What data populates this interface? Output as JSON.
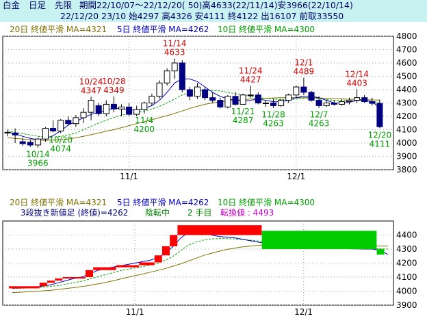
{
  "header": {
    "line1": {
      "name": "白金",
      "period_type": "日足",
      "contract": "先限",
      "range": "期間22/10/07～22/12/20( 50)高4633(22/11/14)安3966(22/10/14)"
    },
    "line2": "22/12/20 23/10 始4297 高4326 安4111 終4122 出16107 前取33550"
  },
  "colors": {
    "ma20": "#807000",
    "ma5": "#0000c0",
    "ma10": "#00a000",
    "high_label": "#d00000",
    "low_label": "#00a000",
    "pf_up": "#ff0000",
    "pf_down": "#00cc00",
    "reversal": "#cc00cc",
    "grid": "#a0a0a0"
  },
  "chart_data": [
    {
      "type": "candlestick",
      "legend": {
        "ma20": "20日 終値平滑 MA=4321",
        "ma5": "5日 終値平滑 MA=4262",
        "ma10": "10日 終値平滑 MA=4300"
      },
      "ylim": [
        3800,
        4800
      ],
      "yticks": [
        3800,
        3900,
        4000,
        4100,
        4200,
        4300,
        4400,
        4500,
        4600,
        4700,
        4800
      ],
      "xticks": [
        {
          "label": "11/1",
          "index": 16
        },
        {
          "label": "12/1",
          "index": 38
        }
      ],
      "candles": [
        {
          "o": 4080,
          "h": 4100,
          "l": 4050,
          "c": 4080
        },
        {
          "o": 4075,
          "h": 4110,
          "l": 4000,
          "c": 4060
        },
        {
          "o": 4010,
          "h": 4040,
          "l": 3980,
          "c": 3995
        },
        {
          "o": 4005,
          "h": 4025,
          "l": 3970,
          "c": 3985
        },
        {
          "o": 3985,
          "h": 4040,
          "l": 3966,
          "c": 4030
        },
        {
          "o": 4030,
          "h": 4120,
          "l": 4010,
          "c": 4110
        },
        {
          "o": 4110,
          "h": 4170,
          "l": 4080,
          "c": 4090
        },
        {
          "o": 4090,
          "h": 4180,
          "l": 4074,
          "c": 4170
        },
        {
          "o": 4170,
          "h": 4200,
          "l": 4130,
          "c": 4145
        },
        {
          "o": 4145,
          "h": 4210,
          "l": 4120,
          "c": 4190
        },
        {
          "o": 4190,
          "h": 4260,
          "l": 4150,
          "c": 4230
        },
        {
          "o": 4230,
          "h": 4347,
          "l": 4170,
          "c": 4320
        },
        {
          "o": 4280,
          "h": 4300,
          "l": 4200,
          "c": 4220
        },
        {
          "o": 4220,
          "h": 4320,
          "l": 4200,
          "c": 4290
        },
        {
          "o": 4290,
          "h": 4349,
          "l": 4230,
          "c": 4255
        },
        {
          "o": 4255,
          "h": 4290,
          "l": 4200,
          "c": 4270
        },
        {
          "o": 4270,
          "h": 4300,
          "l": 4200,
          "c": 4215
        },
        {
          "o": 4215,
          "h": 4280,
          "l": 4200,
          "c": 4250
        },
        {
          "o": 4250,
          "h": 4310,
          "l": 4220,
          "c": 4300
        },
        {
          "o": 4300,
          "h": 4370,
          "l": 4280,
          "c": 4350
        },
        {
          "o": 4350,
          "h": 4470,
          "l": 4330,
          "c": 4450
        },
        {
          "o": 4450,
          "h": 4560,
          "l": 4430,
          "c": 4540
        },
        {
          "o": 4540,
          "h": 4633,
          "l": 4480,
          "c": 4600
        },
        {
          "o": 4600,
          "h": 4620,
          "l": 4380,
          "c": 4400
        },
        {
          "o": 4400,
          "h": 4420,
          "l": 4320,
          "c": 4350
        },
        {
          "o": 4350,
          "h": 4450,
          "l": 4330,
          "c": 4420
        },
        {
          "o": 4400,
          "h": 4420,
          "l": 4320,
          "c": 4340
        },
        {
          "o": 4340,
          "h": 4380,
          "l": 4300,
          "c": 4320
        },
        {
          "o": 4320,
          "h": 4340,
          "l": 4260,
          "c": 4270
        },
        {
          "o": 4270,
          "h": 4360,
          "l": 4260,
          "c": 4350
        },
        {
          "o": 4350,
          "h": 4380,
          "l": 4280,
          "c": 4290
        },
        {
          "o": 4290,
          "h": 4370,
          "l": 4287,
          "c": 4360
        },
        {
          "o": 4360,
          "h": 4427,
          "l": 4340,
          "c": 4360
        },
        {
          "o": 4360,
          "h": 4380,
          "l": 4290,
          "c": 4300
        },
        {
          "o": 4300,
          "h": 4320,
          "l": 4270,
          "c": 4300
        },
        {
          "o": 4300,
          "h": 4330,
          "l": 4263,
          "c": 4280
        },
        {
          "o": 4280,
          "h": 4330,
          "l": 4270,
          "c": 4320
        },
        {
          "o": 4320,
          "h": 4370,
          "l": 4300,
          "c": 4360
        },
        {
          "o": 4360,
          "h": 4430,
          "l": 4340,
          "c": 4420
        },
        {
          "o": 4420,
          "h": 4489,
          "l": 4360,
          "c": 4380
        },
        {
          "o": 4380,
          "h": 4390,
          "l": 4310,
          "c": 4320
        },
        {
          "o": 4320,
          "h": 4350,
          "l": 4263,
          "c": 4280
        },
        {
          "o": 4280,
          "h": 4320,
          "l": 4270,
          "c": 4300
        },
        {
          "o": 4300,
          "h": 4320,
          "l": 4280,
          "c": 4290
        },
        {
          "o": 4290,
          "h": 4330,
          "l": 4280,
          "c": 4310
        },
        {
          "o": 4310,
          "h": 4340,
          "l": 4290,
          "c": 4320
        },
        {
          "o": 4320,
          "h": 4403,
          "l": 4300,
          "c": 4340
        },
        {
          "o": 4340,
          "h": 4360,
          "l": 4300,
          "c": 4310
        },
        {
          "o": 4310,
          "h": 4340,
          "l": 4280,
          "c": 4297
        },
        {
          "o": 4297,
          "h": 4326,
          "l": 4111,
          "c": 4122
        }
      ],
      "ma5": [
        4080,
        4070,
        4050,
        4035,
        4025,
        4035,
        4055,
        4090,
        4135,
        4160,
        4190,
        4215,
        4230,
        4245,
        4262,
        4255,
        4250,
        4245,
        4260,
        4280,
        4320,
        4380,
        4450,
        4480,
        4480,
        4460,
        4420,
        4380,
        4350,
        4330,
        4320,
        4315,
        4320,
        4330,
        4320,
        4310,
        4310,
        4320,
        4340,
        4350,
        4350,
        4340,
        4320,
        4300,
        4300,
        4305,
        4320,
        4320,
        4310,
        4262
      ],
      "ma10": [
        4090,
        4080,
        4070,
        4060,
        4050,
        4045,
        4045,
        4050,
        4060,
        4075,
        4100,
        4125,
        4150,
        4170,
        4190,
        4210,
        4220,
        4230,
        4240,
        4255,
        4275,
        4300,
        4330,
        4360,
        4380,
        4390,
        4395,
        4395,
        4390,
        4380,
        4370,
        4360,
        4350,
        4340,
        4335,
        4330,
        4325,
        4325,
        4330,
        4335,
        4335,
        4330,
        4325,
        4320,
        4320,
        4318,
        4318,
        4316,
        4312,
        4300
      ],
      "ma20": [
        4040,
        4035,
        4030,
        4025,
        4020,
        4020,
        4022,
        4025,
        4030,
        4040,
        4050,
        4062,
        4075,
        4088,
        4100,
        4115,
        4130,
        4145,
        4160,
        4175,
        4190,
        4205,
        4222,
        4240,
        4260,
        4275,
        4290,
        4300,
        4308,
        4315,
        4320,
        4325,
        4330,
        4333,
        4335,
        4338,
        4340,
        4340,
        4340,
        4340,
        4340,
        4338,
        4335,
        4332,
        4330,
        4328,
        4326,
        4325,
        4323,
        4321
      ],
      "annotations": [
        {
          "date": "10/14",
          "value": "3966",
          "type": "low",
          "index": 4
        },
        {
          "date": "10/20",
          "value": "4074",
          "type": "low",
          "index": 7
        },
        {
          "date": "10/24",
          "value": "4347",
          "type": "high",
          "index": 11
        },
        {
          "date": "10/28",
          "value": "4349",
          "type": "high",
          "index": 14
        },
        {
          "date": "11/4",
          "value": "4200",
          "type": "low",
          "index": 18
        },
        {
          "date": "11/14",
          "value": "4633",
          "type": "high",
          "index": 22
        },
        {
          "date": "11/21",
          "value": "4287",
          "type": "low",
          "index": 31
        },
        {
          "date": "11/24",
          "value": "4427",
          "type": "high",
          "index": 32
        },
        {
          "date": "11/28",
          "value": "4263",
          "type": "low",
          "index": 35
        },
        {
          "date": "12/1",
          "value": "4489",
          "type": "high",
          "index": 39
        },
        {
          "date": "12/7",
          "value": "4263",
          "type": "low",
          "index": 41
        },
        {
          "date": "12/14",
          "value": "4403",
          "type": "high",
          "index": 46
        },
        {
          "date": "12/20",
          "value": "4111",
          "type": "low",
          "index": 49
        }
      ]
    },
    {
      "type": "three-line-break",
      "legend": {
        "ma20": "20日 終値平滑 MA=4321",
        "ma5": "5日 終値平滑 MA=4262",
        "ma10": "10日 終値平滑 MA=4300"
      },
      "status": {
        "method": "3段抜き新値足 (終値)=4262",
        "trend": "陰転中",
        "step": "2 手目",
        "reversal": "転換値 : 4493"
      },
      "ylim": [
        3900,
        4500
      ],
      "yticks": [
        3900,
        4000,
        4100,
        4200,
        4300,
        4400
      ],
      "xticks": [
        {
          "label": "11/1",
          "index": 16
        },
        {
          "label": "12/1",
          "index": 38
        }
      ],
      "blocks": [
        {
          "dir": "up",
          "start": 0,
          "end": 3,
          "low": 4020,
          "high": 4035
        },
        {
          "dir": "up",
          "start": 4,
          "end": 4,
          "low": 4035,
          "high": 4060
        },
        {
          "dir": "up",
          "start": 5,
          "end": 5,
          "low": 4060,
          "high": 4075
        },
        {
          "dir": "up",
          "start": 6,
          "end": 6,
          "low": 4075,
          "high": 4090
        },
        {
          "dir": "up",
          "start": 7,
          "end": 9,
          "low": 4090,
          "high": 4100
        },
        {
          "dir": "up",
          "start": 10,
          "end": 10,
          "low": 4100,
          "high": 4150
        },
        {
          "dir": "up",
          "start": 11,
          "end": 13,
          "low": 4150,
          "high": 4170
        },
        {
          "dir": "up",
          "start": 14,
          "end": 16,
          "low": 4170,
          "high": 4185
        },
        {
          "dir": "up",
          "start": 17,
          "end": 18,
          "low": 4185,
          "high": 4205
        },
        {
          "dir": "up",
          "start": 19,
          "end": 19,
          "low": 4205,
          "high": 4255
        },
        {
          "dir": "up",
          "start": 20,
          "end": 20,
          "low": 4255,
          "high": 4320
        },
        {
          "dir": "up",
          "start": 21,
          "end": 21,
          "low": 4320,
          "high": 4400
        },
        {
          "dir": "up",
          "start": 22,
          "end": 32,
          "low": 4400,
          "high": 4470
        },
        {
          "dir": "down",
          "start": 33,
          "end": 47,
          "low": 4300,
          "high": 4430
        },
        {
          "dir": "down",
          "start": 48,
          "end": 48,
          "low": 4260,
          "high": 4300
        }
      ],
      "ma5": [
        4020,
        4022,
        4025,
        4030,
        4035,
        4045,
        4060,
        4075,
        4090,
        4100,
        4120,
        4145,
        4160,
        4170,
        4180,
        4190,
        4200,
        4210,
        4220,
        4240,
        4270,
        4320,
        4380,
        4420,
        4420,
        4410,
        4400,
        4390,
        4385,
        4380,
        4370,
        4360,
        4350,
        4340,
        4330,
        4320,
        4315,
        4310,
        4310,
        4308,
        4306,
        4305,
        4304,
        4303,
        4302,
        4301,
        4300,
        4300,
        4290,
        4262
      ],
      "ma10": [
        4020,
        4020,
        4022,
        4025,
        4028,
        4034,
        4040,
        4050,
        4060,
        4070,
        4085,
        4100,
        4115,
        4130,
        4145,
        4155,
        4165,
        4175,
        4185,
        4200,
        4220,
        4250,
        4290,
        4330,
        4350,
        4365,
        4372,
        4375,
        4374,
        4372,
        4368,
        4364,
        4358,
        4350,
        4345,
        4338,
        4332,
        4328,
        4324,
        4320,
        4318,
        4316,
        4314,
        4312,
        4310,
        4308,
        4306,
        4304,
        4302,
        4300
      ],
      "ma20": [
        3990,
        3992,
        3995,
        3998,
        4002,
        4006,
        4012,
        4018,
        4025,
        4032,
        4040,
        4050,
        4060,
        4072,
        4085,
        4098,
        4110,
        4122,
        4135,
        4148,
        4162,
        4178,
        4195,
        4215,
        4235,
        4255,
        4270,
        4285,
        4297,
        4307,
        4315,
        4321,
        4326,
        4329,
        4331,
        4332,
        4332,
        4331,
        4330,
        4329,
        4328,
        4327,
        4326,
        4325,
        4324,
        4323,
        4323,
        4322,
        4322,
        4321
      ]
    }
  ]
}
